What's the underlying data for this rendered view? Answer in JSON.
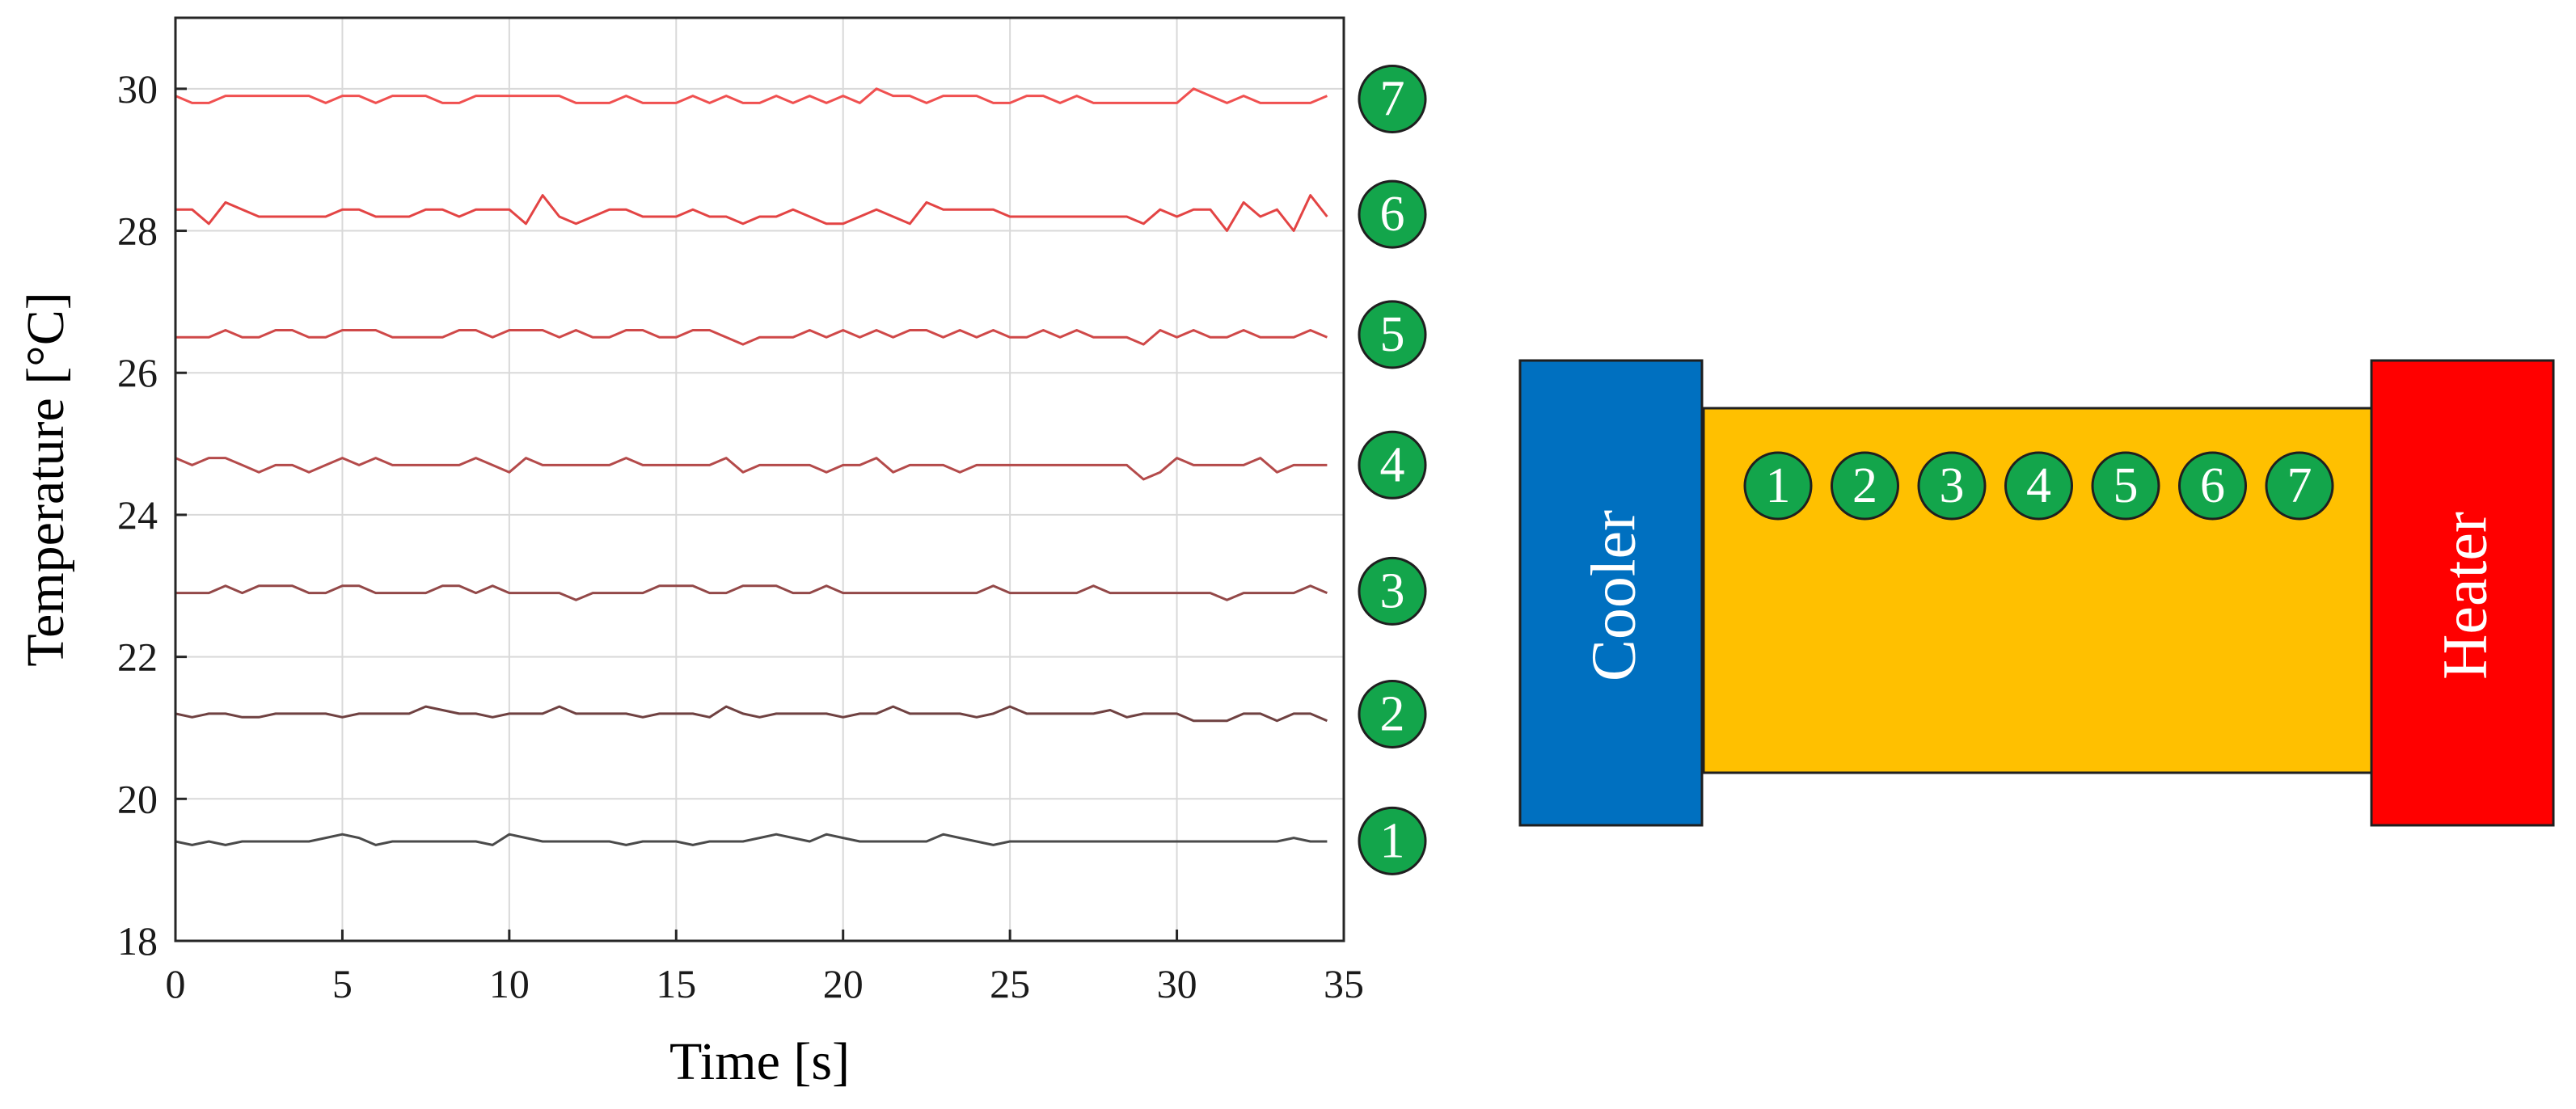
{
  "chart_data": {
    "type": "line",
    "xlabel": "Time [s]",
    "ylabel": "Temperature [°C]",
    "xlim": [
      0,
      35
    ],
    "ylim": [
      18,
      31
    ],
    "x_ticks": [
      0,
      5,
      10,
      15,
      20,
      25,
      30,
      35
    ],
    "y_ticks": [
      18,
      20,
      22,
      24,
      26,
      28,
      30
    ],
    "grid": true,
    "x": [
      0,
      0.5,
      1,
      1.5,
      2,
      2.5,
      3,
      3.5,
      4,
      4.5,
      5,
      5.5,
      6,
      6.5,
      7,
      7.5,
      8,
      8.5,
      9,
      9.5,
      10,
      10.5,
      11,
      11.5,
      12,
      12.5,
      13,
      13.5,
      14,
      14.5,
      15,
      15.5,
      16,
      16.5,
      17,
      17.5,
      18,
      18.5,
      19,
      19.5,
      20,
      20.5,
      21,
      21.5,
      22,
      22.5,
      23,
      23.5,
      24,
      24.5,
      25,
      25.5,
      26,
      26.5,
      27,
      27.5,
      28,
      28.5,
      29,
      29.5,
      30,
      30.5,
      31,
      31.5,
      32,
      32.5,
      33,
      33.5,
      34,
      34.5
    ],
    "series": [
      {
        "name": "1",
        "color": "#4a4a4a",
        "values": [
          19.4,
          19.35,
          19.4,
          19.35,
          19.4,
          19.4,
          19.4,
          19.4,
          19.4,
          19.45,
          19.5,
          19.45,
          19.35,
          19.4,
          19.4,
          19.4,
          19.4,
          19.4,
          19.4,
          19.35,
          19.5,
          19.45,
          19.4,
          19.4,
          19.4,
          19.4,
          19.4,
          19.35,
          19.4,
          19.4,
          19.4,
          19.35,
          19.4,
          19.4,
          19.4,
          19.45,
          19.5,
          19.45,
          19.4,
          19.5,
          19.45,
          19.4,
          19.4,
          19.4,
          19.4,
          19.4,
          19.5,
          19.45,
          19.4,
          19.35,
          19.4,
          19.4,
          19.4,
          19.4,
          19.4,
          19.4,
          19.4,
          19.4,
          19.4,
          19.4,
          19.4,
          19.4,
          19.4,
          19.4,
          19.4,
          19.4,
          19.4,
          19.45,
          19.4,
          19.4
        ]
      },
      {
        "name": "2",
        "color": "#6f4141",
        "values": [
          21.2,
          21.15,
          21.2,
          21.2,
          21.15,
          21.15,
          21.2,
          21.2,
          21.2,
          21.2,
          21.15,
          21.2,
          21.2,
          21.2,
          21.2,
          21.3,
          21.25,
          21.2,
          21.2,
          21.15,
          21.2,
          21.2,
          21.2,
          21.3,
          21.2,
          21.2,
          21.2,
          21.2,
          21.15,
          21.2,
          21.2,
          21.2,
          21.15,
          21.3,
          21.2,
          21.15,
          21.2,
          21.2,
          21.2,
          21.2,
          21.15,
          21.2,
          21.2,
          21.3,
          21.2,
          21.2,
          21.2,
          21.2,
          21.15,
          21.2,
          21.3,
          21.2,
          21.2,
          21.2,
          21.2,
          21.2,
          21.25,
          21.15,
          21.2,
          21.2,
          21.2,
          21.1,
          21.1,
          21.1,
          21.2,
          21.2,
          21.1,
          21.2,
          21.2,
          21.1
        ]
      },
      {
        "name": "3",
        "color": "#934848",
        "values": [
          22.9,
          22.9,
          22.9,
          23.0,
          22.9,
          23.0,
          23.0,
          23.0,
          22.9,
          22.9,
          23.0,
          23.0,
          22.9,
          22.9,
          22.9,
          22.9,
          23.0,
          23.0,
          22.9,
          23.0,
          22.9,
          22.9,
          22.9,
          22.9,
          22.8,
          22.9,
          22.9,
          22.9,
          22.9,
          23.0,
          23.0,
          23.0,
          22.9,
          22.9,
          23.0,
          23.0,
          23.0,
          22.9,
          22.9,
          23.0,
          22.9,
          22.9,
          22.9,
          22.9,
          22.9,
          22.9,
          22.9,
          22.9,
          22.9,
          23.0,
          22.9,
          22.9,
          22.9,
          22.9,
          22.9,
          23.0,
          22.9,
          22.9,
          22.9,
          22.9,
          22.9,
          22.9,
          22.9,
          22.8,
          22.9,
          22.9,
          22.9,
          22.9,
          23.0,
          22.9
        ]
      },
      {
        "name": "4",
        "color": "#b44a4a",
        "values": [
          24.8,
          24.7,
          24.8,
          24.8,
          24.7,
          24.6,
          24.7,
          24.7,
          24.6,
          24.7,
          24.8,
          24.7,
          24.8,
          24.7,
          24.7,
          24.7,
          24.7,
          24.7,
          24.8,
          24.7,
          24.6,
          24.8,
          24.7,
          24.7,
          24.7,
          24.7,
          24.7,
          24.8,
          24.7,
          24.7,
          24.7,
          24.7,
          24.7,
          24.8,
          24.6,
          24.7,
          24.7,
          24.7,
          24.7,
          24.6,
          24.7,
          24.7,
          24.8,
          24.6,
          24.7,
          24.7,
          24.7,
          24.6,
          24.7,
          24.7,
          24.7,
          24.7,
          24.7,
          24.7,
          24.7,
          24.7,
          24.7,
          24.7,
          24.5,
          24.6,
          24.8,
          24.7,
          24.7,
          24.7,
          24.7,
          24.8,
          24.6,
          24.7,
          24.7,
          24.7
        ]
      },
      {
        "name": "5",
        "color": "#cf4848",
        "values": [
          26.5,
          26.5,
          26.5,
          26.6,
          26.5,
          26.5,
          26.6,
          26.6,
          26.5,
          26.5,
          26.6,
          26.6,
          26.6,
          26.5,
          26.5,
          26.5,
          26.5,
          26.6,
          26.6,
          26.5,
          26.6,
          26.6,
          26.6,
          26.5,
          26.6,
          26.5,
          26.5,
          26.6,
          26.6,
          26.5,
          26.5,
          26.6,
          26.6,
          26.5,
          26.4,
          26.5,
          26.5,
          26.5,
          26.6,
          26.5,
          26.6,
          26.5,
          26.6,
          26.5,
          26.6,
          26.6,
          26.5,
          26.6,
          26.5,
          26.6,
          26.5,
          26.5,
          26.6,
          26.5,
          26.6,
          26.5,
          26.5,
          26.5,
          26.4,
          26.6,
          26.5,
          26.6,
          26.5,
          26.5,
          26.6,
          26.5,
          26.5,
          26.5,
          26.6,
          26.5
        ]
      },
      {
        "name": "6",
        "color": "#e34444",
        "values": [
          28.3,
          28.3,
          28.1,
          28.4,
          28.3,
          28.2,
          28.2,
          28.2,
          28.2,
          28.2,
          28.3,
          28.3,
          28.2,
          28.2,
          28.2,
          28.3,
          28.3,
          28.2,
          28.3,
          28.3,
          28.3,
          28.1,
          28.5,
          28.2,
          28.1,
          28.2,
          28.3,
          28.3,
          28.2,
          28.2,
          28.2,
          28.3,
          28.2,
          28.2,
          28.1,
          28.2,
          28.2,
          28.3,
          28.2,
          28.1,
          28.1,
          28.2,
          28.3,
          28.2,
          28.1,
          28.4,
          28.3,
          28.3,
          28.3,
          28.3,
          28.2,
          28.2,
          28.2,
          28.2,
          28.2,
          28.2,
          28.2,
          28.2,
          28.1,
          28.3,
          28.2,
          28.3,
          28.3,
          28.0,
          28.4,
          28.2,
          28.3,
          28.0,
          28.5,
          28.2
        ]
      },
      {
        "name": "7",
        "color": "#f05050",
        "values": [
          29.9,
          29.8,
          29.8,
          29.9,
          29.9,
          29.9,
          29.9,
          29.9,
          29.9,
          29.8,
          29.9,
          29.9,
          29.8,
          29.9,
          29.9,
          29.9,
          29.8,
          29.8,
          29.9,
          29.9,
          29.9,
          29.9,
          29.9,
          29.9,
          29.8,
          29.8,
          29.8,
          29.9,
          29.8,
          29.8,
          29.8,
          29.9,
          29.8,
          29.9,
          29.8,
          29.8,
          29.9,
          29.8,
          29.9,
          29.8,
          29.9,
          29.8,
          30.0,
          29.9,
          29.9,
          29.8,
          29.9,
          29.9,
          29.9,
          29.8,
          29.8,
          29.9,
          29.9,
          29.8,
          29.9,
          29.8,
          29.8,
          29.8,
          29.8,
          29.8,
          29.8,
          30.0,
          29.9,
          29.8,
          29.9,
          29.8,
          29.8,
          29.8,
          29.8,
          29.9
        ]
      }
    ]
  },
  "diagram": {
    "cooler_label": "Cooler",
    "heater_label": "Heater",
    "sensor_labels": [
      "1",
      "2",
      "3",
      "4",
      "5",
      "6",
      "7"
    ]
  },
  "colors": {
    "sensor_badge": "#13a54b",
    "cooler": "#0070c0",
    "heater": "#ff0000",
    "bar": "#ffc000",
    "grid": "#d9d9d9"
  }
}
